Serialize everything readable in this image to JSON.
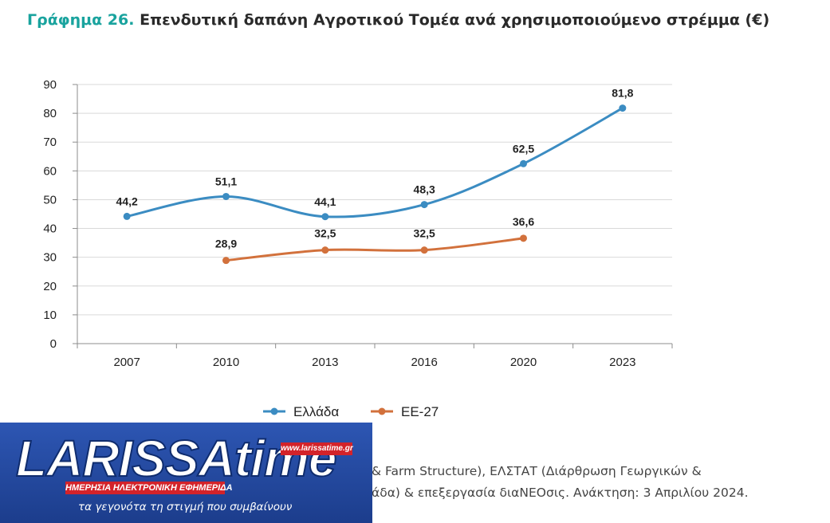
{
  "title": {
    "prefix": "Γράφημα 26.",
    "text": "Επενδυτική δαπάνη Αγροτικού Τομέα ανά χρησιμοποιούμενο στρέμμα (€)"
  },
  "colors": {
    "greece": "#3b8cc2",
    "eu27": "#d2713c",
    "title_accent": "#19a39e"
  },
  "chart_data": {
    "type": "line",
    "title": "Επενδυτική δαπάνη Αγροτικού Τομέα ανά χρησιμοποιούμενο στρέμμα (€)",
    "categories": [
      "2007",
      "2010",
      "2013",
      "2016",
      "2020",
      "2023"
    ],
    "yticks": [
      "0",
      "10",
      "20",
      "30",
      "40",
      "50",
      "60",
      "70",
      "80",
      "90"
    ],
    "ylim": [
      0,
      90
    ],
    "grid": true,
    "legend_position": "bottom-center",
    "series": [
      {
        "name": "Ελλάδα",
        "values": [
          44.2,
          51.1,
          44.1,
          48.3,
          62.5,
          81.8
        ],
        "labels": [
          "44,2",
          "51,1",
          "44,1",
          "48,3",
          "62,5",
          "81,8"
        ]
      },
      {
        "name": "ΕΕ-27",
        "values": [
          null,
          28.9,
          32.5,
          32.5,
          36.6,
          null
        ],
        "labels": [
          "",
          "28,9",
          "32,5",
          "32,5",
          "36,6",
          ""
        ]
      }
    ]
  },
  "source": {
    "line1": "& Farm Structure), ΕΛΣΤΑΤ (Διάρθρωση Γεωργικών &",
    "line2": "άδα) & επεξεργασία διαΝΕΟσις. Ανάκτηση: 3 Απριλίου 2024."
  },
  "logo": {
    "word": "LARISSAtime",
    "url": "www.larissatime.gr",
    "band": "ΗΜΕΡΗΣΙΑ ΗΛΕΚΤΡΟΝΙΚΗ ΕΦΗΜΕΡΙΔΑ",
    "tagline": "τα γεγονότα τη στιγμή που συμβαίνουν"
  }
}
